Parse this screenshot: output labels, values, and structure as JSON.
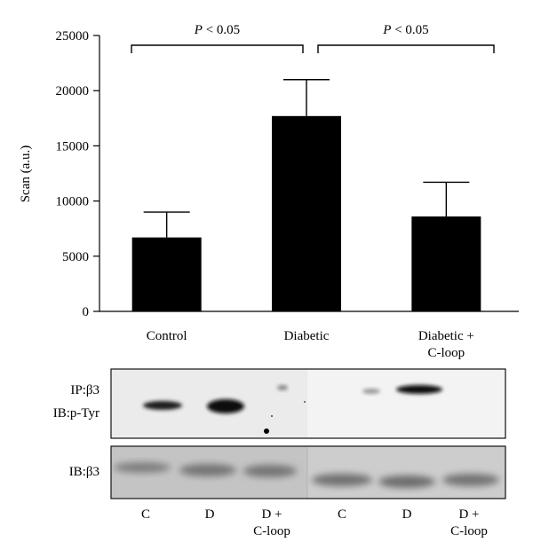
{
  "chart_data": {
    "type": "bar",
    "categories": [
      "Control",
      "Diabetic",
      "Diabetic +\nC-loop"
    ],
    "values": [
      6700,
      17700,
      8600
    ],
    "error_upper": [
      9000,
      21000,
      11700
    ],
    "ylabel": "Scan (a.u.)",
    "ylim": [
      0,
      25000
    ],
    "yticks": [
      0,
      5000,
      10000,
      15000,
      20000,
      25000
    ],
    "bar_color": "#000000",
    "significance": [
      {
        "from": 0,
        "to": 1,
        "label": "P < 0.05"
      },
      {
        "from": 1,
        "to": 2,
        "label": "P < 0.05"
      }
    ]
  },
  "blots": {
    "top_panel": {
      "label_line1": "IP:β3",
      "label_line2": "IB:p-Tyr"
    },
    "bottom_panel": {
      "label": "IB:β3"
    },
    "lanes": [
      "C",
      "D",
      "D +\nC-loop",
      "C",
      "D",
      "D +\nC-loop"
    ]
  }
}
